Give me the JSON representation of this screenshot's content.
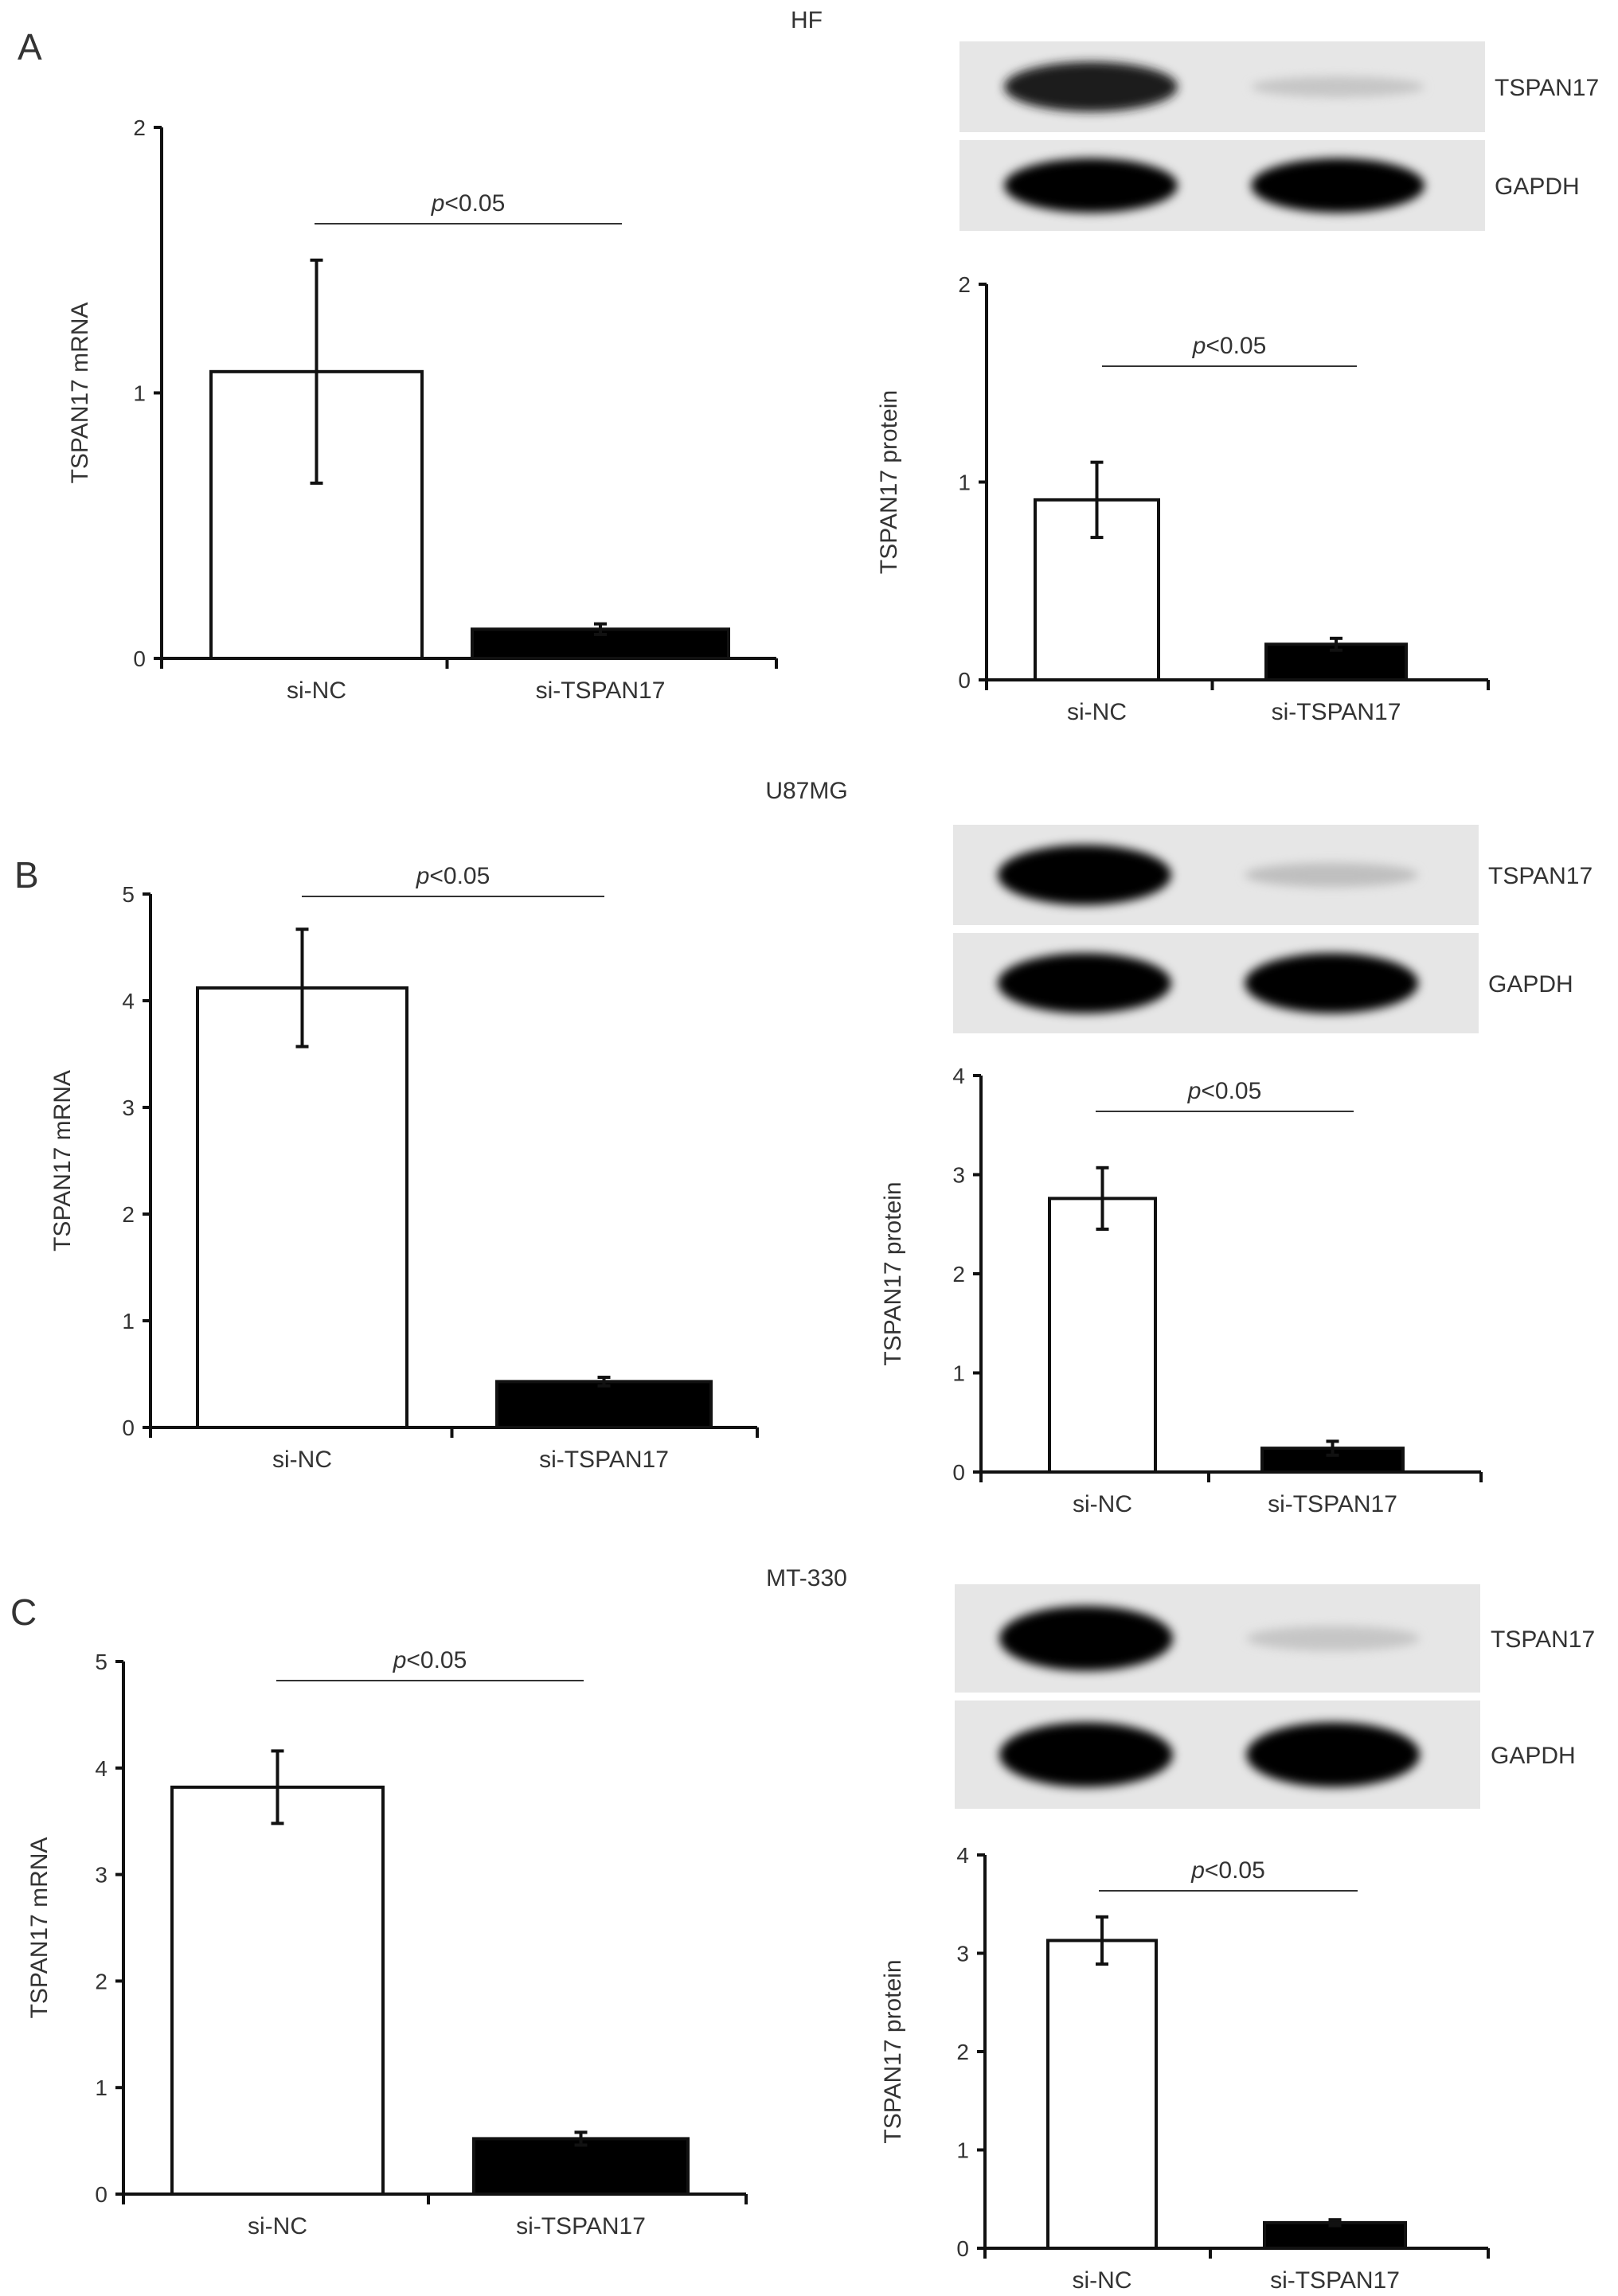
{
  "figure": {
    "panels": [
      {
        "letter": "A",
        "cell_line": "HF",
        "blot": {
          "bands": [
            {
              "label": "TSPAN17",
              "intensity": [
                0.88,
                0.12
              ]
            },
            {
              "label": "GAPDH",
              "intensity": [
                1.0,
                1.0
              ]
            }
          ]
        }
      },
      {
        "letter": "B",
        "cell_line": "U87MG",
        "blot": {
          "bands": [
            {
              "label": "TSPAN17",
              "intensity": [
                1.0,
                0.15
              ]
            },
            {
              "label": "GAPDH",
              "intensity": [
                1.0,
                1.0
              ]
            }
          ]
        }
      },
      {
        "letter": "C",
        "cell_line": "MT-330",
        "blot": {
          "bands": [
            {
              "label": "TSPAN17",
              "intensity": [
                1.0,
                0.12
              ]
            },
            {
              "label": "GAPDH",
              "intensity": [
                1.0,
                1.0
              ]
            }
          ]
        }
      }
    ]
  },
  "chart_data": [
    {
      "type": "bar",
      "panel": "A",
      "categories": [
        "si-NC",
        "si-TSPAN17"
      ],
      "values": [
        1.08,
        0.11
      ],
      "error": [
        0.42,
        0.02
      ],
      "ylabel": "TSPAN17 mRNA",
      "ylim": [
        0,
        2
      ],
      "yticks": [
        "0",
        "1",
        "2"
      ],
      "annotation": {
        "prefix": "p",
        "text": "<0.05"
      },
      "bar_colors": [
        "#ffffff",
        "#000000"
      ]
    },
    {
      "type": "bar",
      "panel": "A",
      "categories": [
        "si-NC",
        "si-TSPAN17"
      ],
      "values": [
        0.91,
        0.18
      ],
      "error": [
        0.19,
        0.03
      ],
      "ylabel": "TSPAN17 protein",
      "ylim": [
        0,
        2
      ],
      "yticks": [
        "0",
        "1",
        "2"
      ],
      "annotation": {
        "prefix": "p",
        "text": "<0.05"
      },
      "bar_colors": [
        "#ffffff",
        "#000000"
      ]
    },
    {
      "type": "bar",
      "panel": "B",
      "categories": [
        "si-NC",
        "si-TSPAN17"
      ],
      "values": [
        4.12,
        0.43
      ],
      "error": [
        0.55,
        0.04
      ],
      "ylabel": "TSPAN17 mRNA",
      "ylim": [
        0,
        5
      ],
      "yticks": [
        "0",
        "1",
        "2",
        "3",
        "4",
        "5"
      ],
      "annotation": {
        "prefix": "p",
        "text": "<0.05"
      },
      "bar_colors": [
        "#ffffff",
        "#000000"
      ]
    },
    {
      "type": "bar",
      "panel": "B",
      "categories": [
        "si-NC",
        "si-TSPAN17"
      ],
      "values": [
        2.76,
        0.24
      ],
      "error": [
        0.31,
        0.07
      ],
      "ylabel": "TSPAN17 protein",
      "ylim": [
        0,
        4
      ],
      "yticks": [
        "0",
        "1",
        "2",
        "3",
        "4"
      ],
      "annotation": {
        "prefix": "p",
        "text": "<0.05"
      },
      "bar_colors": [
        "#ffffff",
        "#000000"
      ]
    },
    {
      "type": "bar",
      "panel": "C",
      "categories": [
        "si-NC",
        "si-TSPAN17"
      ],
      "values": [
        3.82,
        0.52
      ],
      "error": [
        0.34,
        0.06
      ],
      "ylabel": "TSPAN17 mRNA",
      "ylim": [
        0,
        5
      ],
      "yticks": [
        "0",
        "1",
        "2",
        "3",
        "4",
        "5"
      ],
      "annotation": {
        "prefix": "p",
        "text": "<0.05"
      },
      "bar_colors": [
        "#ffffff",
        "#000000"
      ]
    },
    {
      "type": "bar",
      "panel": "C",
      "categories": [
        "si-NC",
        "si-TSPAN17"
      ],
      "values": [
        3.13,
        0.26
      ],
      "error": [
        0.24,
        0.03
      ],
      "ylabel": "TSPAN17 protein",
      "ylim": [
        0,
        4
      ],
      "yticks": [
        "0",
        "1",
        "2",
        "3",
        "4"
      ],
      "annotation": {
        "prefix": "p",
        "text": "<0.05"
      },
      "bar_colors": [
        "#ffffff",
        "#000000"
      ]
    }
  ]
}
